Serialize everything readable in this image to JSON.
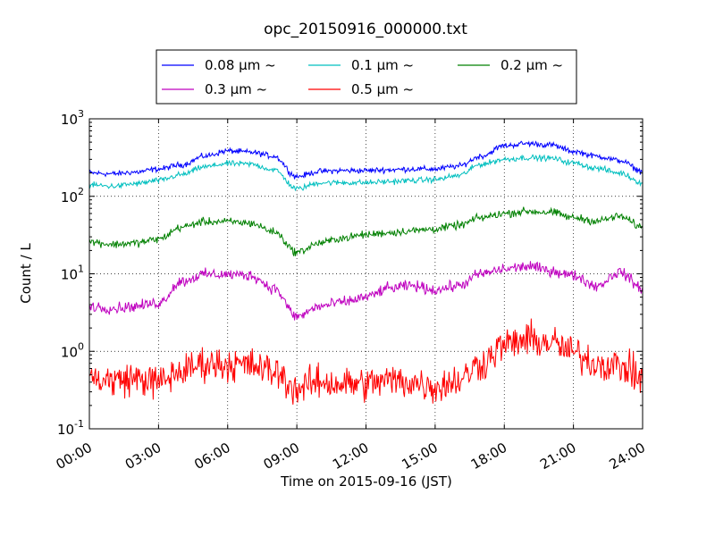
{
  "chart_data": {
    "type": "line",
    "title": "opc_20150916_000000.txt",
    "xlabel": "Time on 2015-09-16 (JST)",
    "ylabel": "Count / L",
    "y_scale": "log",
    "xlim": [
      "00:00",
      "24:00"
    ],
    "ylim": [
      0.1,
      1000
    ],
    "x_ticks": [
      "00:00",
      "03:00",
      "06:00",
      "09:00",
      "12:00",
      "15:00",
      "18:00",
      "21:00",
      "24:00"
    ],
    "y_ticks": [
      {
        "base": "10",
        "exp": "-1",
        "value": 0.1
      },
      {
        "base": "10",
        "exp": "0",
        "value": 1
      },
      {
        "base": "10",
        "exp": "1",
        "value": 10
      },
      {
        "base": "10",
        "exp": "2",
        "value": 100
      },
      {
        "base": "10",
        "exp": "3",
        "value": 1000
      }
    ],
    "grid": true,
    "legend_position": "top-center-outside",
    "x_anchors": [
      "00:00",
      "01:00",
      "02:00",
      "03:00",
      "04:00",
      "05:00",
      "06:00",
      "07:00",
      "08:00",
      "09:00",
      "10:00",
      "11:00",
      "12:00",
      "13:00",
      "14:00",
      "15:00",
      "16:00",
      "17:00",
      "18:00",
      "19:00",
      "20:00",
      "21:00",
      "22:00",
      "23:00",
      "24:00"
    ],
    "series": [
      {
        "name": "0.08 μm ~",
        "color": "#0000ff",
        "values": [
          200,
          195,
          205,
          225,
          255,
          330,
          385,
          370,
          330,
          180,
          210,
          215,
          215,
          220,
          225,
          225,
          245,
          330,
          450,
          480,
          460,
          380,
          330,
          290,
          210
        ]
      },
      {
        "name": "0.1 μm ~",
        "color": "#00bfbf",
        "values": [
          140,
          135,
          145,
          160,
          190,
          240,
          265,
          260,
          220,
          125,
          150,
          150,
          150,
          155,
          160,
          165,
          185,
          260,
          300,
          315,
          310,
          270,
          230,
          200,
          150
        ]
      },
      {
        "name": "0.2 μm ~",
        "color": "#008000",
        "values": [
          26,
          24,
          25,
          28,
          40,
          47,
          47,
          45,
          35,
          19,
          25,
          29,
          32,
          34,
          36,
          38,
          42,
          53,
          60,
          64,
          62,
          53,
          48,
          55,
          40
        ]
      },
      {
        "name": "0.3 μm ~",
        "color": "#bf00bf",
        "values": [
          3.8,
          3.6,
          3.8,
          4.2,
          8.0,
          9.8,
          9.8,
          9.5,
          6.5,
          2.8,
          3.8,
          4.3,
          5.0,
          6.5,
          7.0,
          6.2,
          7.0,
          10.0,
          11.5,
          12.5,
          11.0,
          9.5,
          7.0,
          10.5,
          6.5
        ]
      },
      {
        "name": "0.5 μm ~",
        "color": "#ff0000",
        "values": [
          0.45,
          0.42,
          0.45,
          0.4,
          0.55,
          0.7,
          0.68,
          0.65,
          0.55,
          0.33,
          0.4,
          0.38,
          0.38,
          0.42,
          0.4,
          0.35,
          0.42,
          0.7,
          1.2,
          1.4,
          1.3,
          0.95,
          0.7,
          0.65,
          0.45
        ]
      }
    ]
  }
}
